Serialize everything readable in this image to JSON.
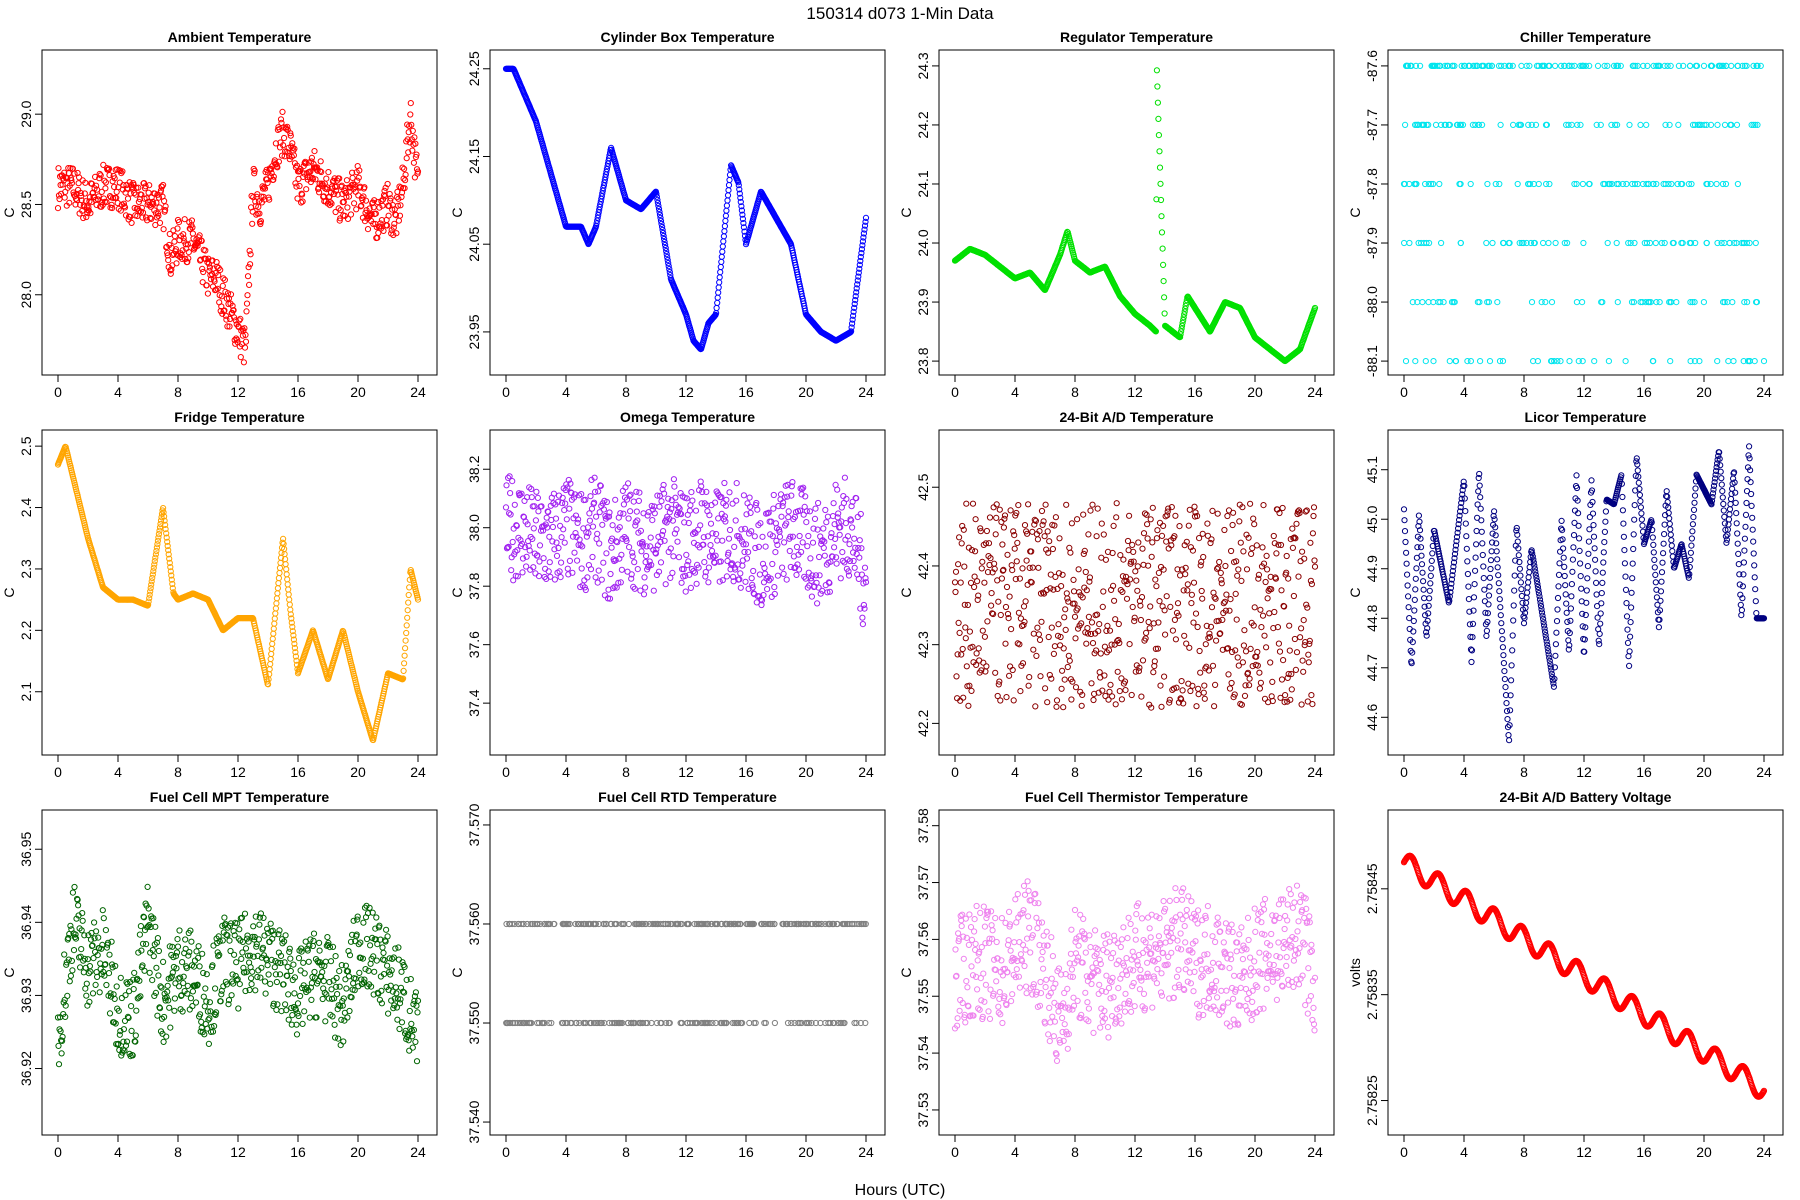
{
  "figure": {
    "title": "150314   d073   1-Min Data",
    "xlabel": "Hours (UTC)"
  },
  "chart_data": [
    {
      "type": "scatter",
      "title": "Ambient Temperature",
      "ylabel": "C",
      "color": "#ff0000",
      "xlim": [
        0,
        24
      ],
      "ylim": [
        27.6,
        29.3
      ],
      "xticks": [
        0,
        4,
        8,
        12,
        16,
        20,
        24
      ],
      "xtick_labels": [
        "0",
        "4",
        "8",
        "12",
        "16",
        "20",
        "24"
      ],
      "yticks": [
        28.0,
        28.5,
        29.0
      ],
      "ytick_labels": [
        "28.0",
        "28.5",
        "29.0"
      ],
      "series": [
        {
          "name": "Ambient",
          "x": [
            0,
            1,
            2,
            3,
            4,
            5,
            6,
            7,
            7.5,
            8,
            9,
            10,
            10.5,
            11,
            11.5,
            12,
            12.5,
            13,
            13.5,
            14,
            14.5,
            15,
            15.5,
            16,
            17,
            18,
            19,
            20,
            21,
            22,
            22.5,
            23,
            23.5,
            24
          ],
          "y": [
            28.6,
            28.6,
            28.5,
            28.6,
            28.6,
            28.5,
            28.5,
            28.5,
            28.2,
            28.3,
            28.3,
            28.1,
            28.1,
            28.0,
            27.9,
            27.8,
            27.7,
            28.6,
            28.5,
            28.6,
            28.8,
            28.9,
            28.8,
            28.6,
            28.7,
            28.6,
            28.5,
            28.6,
            28.4,
            28.5,
            28.4,
            28.6,
            29.0,
            28.6
          ],
          "spread": 0.12
        }
      ]
    },
    {
      "type": "scatter",
      "title": "Cylinder Box Temperature",
      "ylabel": "C",
      "color": "#0000ff",
      "xlim": [
        0,
        24
      ],
      "ylim": [
        23.91,
        24.26
      ],
      "xticks": [
        0,
        4,
        8,
        12,
        16,
        20,
        24
      ],
      "xtick_labels": [
        "0",
        "4",
        "8",
        "12",
        "16",
        "20",
        "24"
      ],
      "yticks": [
        23.95,
        24.05,
        24.15,
        24.25
      ],
      "ytick_labels": [
        "23.95",
        "24.05",
        "24.15",
        "24.25"
      ],
      "series": [
        {
          "name": "Cylinder Box",
          "x": [
            0,
            0.5,
            1,
            2,
            3,
            4,
            5,
            5.5,
            6,
            7,
            8,
            9,
            10,
            11,
            12,
            12.5,
            13,
            13.5,
            14,
            15,
            15.5,
            16,
            17,
            18,
            19,
            20,
            21,
            22,
            23,
            24
          ],
          "y": [
            24.25,
            24.25,
            24.23,
            24.19,
            24.13,
            24.07,
            24.07,
            24.05,
            24.07,
            24.16,
            24.1,
            24.09,
            24.11,
            24.01,
            23.97,
            23.94,
            23.93,
            23.96,
            23.97,
            24.14,
            24.12,
            24.05,
            24.11,
            24.08,
            24.05,
            23.97,
            23.95,
            23.94,
            23.95,
            24.08
          ],
          "spread": 0
        }
      ]
    },
    {
      "type": "scatter",
      "title": "Regulator Temperature",
      "ylabel": "C",
      "color": "#00e000",
      "xlim": [
        0,
        24
      ],
      "ylim": [
        23.79,
        24.31
      ],
      "xticks": [
        0,
        4,
        8,
        12,
        16,
        20,
        24
      ],
      "xtick_labels": [
        "0",
        "4",
        "8",
        "12",
        "16",
        "20",
        "24"
      ],
      "yticks": [
        23.8,
        23.9,
        24.0,
        24.1,
        24.2,
        24.3
      ],
      "ytick_labels": [
        "23.8",
        "23.9",
        "24.0",
        "24.1",
        "24.2",
        "24.3"
      ],
      "series": [
        {
          "name": "Regulator",
          "x": [
            0,
            1,
            2,
            3,
            4,
            5,
            6,
            7,
            7.5,
            8,
            9,
            10,
            11,
            12,
            13,
            13.4,
            13.45,
            14,
            15,
            15.5,
            16,
            17,
            18,
            19,
            20,
            21,
            22,
            23,
            24
          ],
          "y": [
            23.97,
            23.99,
            23.98,
            23.96,
            23.94,
            23.95,
            23.92,
            23.98,
            24.02,
            23.97,
            23.95,
            23.96,
            23.91,
            23.88,
            23.86,
            23.85,
            24.3,
            23.86,
            23.84,
            23.91,
            23.89,
            23.85,
            23.9,
            23.89,
            23.84,
            23.82,
            23.8,
            23.82,
            23.89
          ],
          "spread": 0
        }
      ]
    },
    {
      "type": "scatter",
      "title": "Chiller Temperature",
      "ylabel": "C",
      "color": "#00e5ee",
      "xlim": [
        0,
        24
      ],
      "ylim": [
        -88.11,
        -87.59
      ],
      "xticks": [
        0,
        4,
        8,
        12,
        16,
        20,
        24
      ],
      "xtick_labels": [
        "0",
        "4",
        "8",
        "12",
        "16",
        "20",
        "24"
      ],
      "yticks": [
        -88.1,
        -88.0,
        -87.9,
        -87.8,
        -87.7,
        -87.6
      ],
      "ytick_labels": [
        "-88.1",
        "-88.0",
        "-87.9",
        "-87.8",
        "-87.7",
        "-87.6"
      ],
      "levels": [
        -87.6,
        -87.7,
        -87.8,
        -87.9,
        -88.0,
        -88.1
      ],
      "series": [
        {
          "name": "Chiller",
          "x": [],
          "y": [],
          "spread": 0
        }
      ]
    },
    {
      "type": "scatter",
      "title": "Fridge Temperature",
      "ylabel": "C",
      "color": "#ffa500",
      "xlim": [
        0,
        24
      ],
      "ylim": [
        2.01,
        2.51
      ],
      "xticks": [
        0,
        4,
        8,
        12,
        16,
        20,
        24
      ],
      "xtick_labels": [
        "0",
        "4",
        "8",
        "12",
        "16",
        "20",
        "24"
      ],
      "yticks": [
        2.1,
        2.2,
        2.3,
        2.4,
        2.5
      ],
      "ytick_labels": [
        "2.1",
        "2.2",
        "2.3",
        "2.4",
        "2.5"
      ],
      "series": [
        {
          "name": "Fridge",
          "x": [
            0,
            0.5,
            1,
            2,
            3,
            4,
            5,
            6,
            7,
            7.7,
            8,
            9,
            10,
            11,
            12,
            13,
            14,
            15,
            15.5,
            16,
            17,
            18,
            19,
            20,
            21,
            22,
            23,
            23.5,
            24
          ],
          "y": [
            2.47,
            2.5,
            2.45,
            2.35,
            2.27,
            2.25,
            2.25,
            2.24,
            2.4,
            2.26,
            2.25,
            2.26,
            2.25,
            2.2,
            2.22,
            2.22,
            2.11,
            2.35,
            2.23,
            2.13,
            2.2,
            2.12,
            2.2,
            2.1,
            2.02,
            2.13,
            2.12,
            2.3,
            2.25
          ],
          "spread": 0
        }
      ]
    },
    {
      "type": "scatter",
      "title": "Omega Temperature",
      "ylabel": "C",
      "color": "#a020f0",
      "xlim": [
        0,
        24
      ],
      "ylim": [
        37.25,
        38.3
      ],
      "xticks": [
        0,
        4,
        8,
        12,
        16,
        20,
        24
      ],
      "xtick_labels": [
        "0",
        "4",
        "8",
        "12",
        "16",
        "20",
        "24"
      ],
      "yticks": [
        37.4,
        37.6,
        37.8,
        38.0,
        38.2
      ],
      "ytick_labels": [
        "37.4",
        "37.6",
        "37.8",
        "38.0",
        "38.2"
      ],
      "series": [
        {
          "name": "Omega",
          "x": [
            0,
            1,
            2,
            3,
            4,
            5,
            6,
            7,
            8,
            9,
            10,
            11,
            12,
            13,
            14,
            15,
            16,
            17,
            18,
            19,
            20,
            21,
            22,
            23,
            24
          ],
          "y": [
            38.0,
            38.0,
            37.95,
            37.95,
            38.0,
            37.95,
            38.0,
            37.9,
            38.0,
            37.95,
            37.95,
            38.0,
            37.95,
            38.0,
            37.95,
            38.0,
            37.95,
            37.9,
            37.95,
            38.0,
            37.95,
            37.9,
            38.0,
            38.0,
            37.8
          ],
          "spread": 0.18
        }
      ]
    },
    {
      "type": "scatter",
      "title": "24-Bit A/D Temperature",
      "ylabel": "C",
      "color": "#8b0000",
      "xlim": [
        0,
        24
      ],
      "ylim": [
        42.17,
        42.56
      ],
      "xticks": [
        0,
        4,
        8,
        12,
        16,
        20,
        24
      ],
      "xtick_labels": [
        "0",
        "4",
        "8",
        "12",
        "16",
        "20",
        "24"
      ],
      "yticks": [
        42.2,
        42.3,
        42.4,
        42.5
      ],
      "ytick_labels": [
        "42.2",
        "42.3",
        "42.4",
        "42.5"
      ],
      "series": [
        {
          "name": "24-Bit A/D",
          "x": [
            0,
            24
          ],
          "y": [
            42.35,
            42.35
          ],
          "spread": 0.13
        }
      ]
    },
    {
      "type": "scatter",
      "title": "Licor Temperature",
      "ylabel": "C",
      "color": "#000080",
      "xlim": [
        0,
        24
      ],
      "ylim": [
        44.54,
        45.16
      ],
      "xticks": [
        0,
        4,
        8,
        12,
        16,
        20,
        24
      ],
      "xtick_labels": [
        "0",
        "4",
        "8",
        "12",
        "16",
        "20",
        "24"
      ],
      "yticks": [
        44.6,
        44.7,
        44.8,
        44.9,
        45.0,
        45.1
      ],
      "ytick_labels": [
        "44.6",
        "44.7",
        "44.8",
        "44.9",
        "45.0",
        "45.1"
      ],
      "series": [
        {
          "name": "Licor",
          "x": [
            0,
            0.5,
            1,
            1.5,
            2,
            3,
            4,
            4.5,
            5,
            5.5,
            6,
            7,
            7.5,
            8,
            8.5,
            9,
            10,
            10.5,
            11,
            11.5,
            12,
            12.5,
            13,
            13.5,
            14,
            14.5,
            15,
            15.5,
            16,
            16.5,
            17,
            17.5,
            18,
            18.5,
            19,
            19.5,
            20,
            20.5,
            21,
            21.5,
            22,
            22.5,
            23,
            23.5,
            24
          ],
          "y": [
            45.02,
            44.7,
            45.01,
            44.76,
            44.98,
            44.83,
            45.08,
            44.71,
            45.1,
            44.76,
            45.02,
            44.55,
            44.99,
            44.79,
            44.94,
            44.85,
            44.66,
            45.0,
            44.73,
            45.09,
            44.72,
            45.08,
            44.74,
            45.04,
            45.03,
            45.09,
            44.7,
            45.13,
            44.95,
            45.0,
            44.78,
            45.06,
            44.9,
            44.95,
            44.88,
            45.09,
            45.06,
            45.03,
            45.14,
            44.95,
            45.1,
            44.8,
            45.15,
            44.8,
            44.8
          ],
          "spread": 0
        }
      ]
    },
    {
      "type": "scatter",
      "title": "Fuel Cell MPT Temperature",
      "ylabel": "C",
      "color": "#006400",
      "xlim": [
        0,
        24
      ],
      "ylim": [
        36.912,
        36.954
      ],
      "xticks": [
        0,
        4,
        8,
        12,
        16,
        20,
        24
      ],
      "xtick_labels": [
        "0",
        "4",
        "8",
        "12",
        "16",
        "20",
        "24"
      ],
      "yticks": [
        36.92,
        36.93,
        36.94,
        36.95
      ],
      "ytick_labels": [
        "36.92",
        "36.93",
        "36.94",
        "36.95"
      ],
      "series": [
        {
          "name": "Fuel Cell MPT",
          "x": [
            0,
            1,
            2,
            3,
            4,
            5,
            6,
            7,
            8,
            9,
            10,
            11,
            12,
            13,
            14,
            15,
            16,
            17,
            18,
            19,
            20,
            21,
            22,
            23,
            24
          ],
          "y": [
            36.924,
            36.94,
            36.934,
            36.936,
            36.928,
            36.927,
            36.94,
            36.929,
            36.934,
            36.933,
            36.929,
            36.935,
            36.934,
            36.937,
            36.935,
            36.933,
            36.93,
            36.933,
            36.932,
            36.928,
            36.937,
            36.936,
            36.933,
            36.93,
            36.924
          ],
          "spread": 0.006
        }
      ]
    },
    {
      "type": "scatter",
      "title": "Fuel Cell RTD Temperature",
      "ylabel": "C",
      "color": "#808080",
      "xlim": [
        0,
        24
      ],
      "ylim": [
        37.5395,
        37.5705
      ],
      "xticks": [
        0,
        4,
        8,
        12,
        16,
        20,
        24
      ],
      "xtick_labels": [
        "0",
        "4",
        "8",
        "12",
        "16",
        "20",
        "24"
      ],
      "yticks": [
        37.54,
        37.55,
        37.56,
        37.57
      ],
      "ytick_labels": [
        "37.540",
        "37.550",
        "37.560",
        "37.570"
      ],
      "levels": [
        37.56,
        37.55
      ],
      "series": [
        {
          "name": "Fuel Cell RTD",
          "x": [],
          "y": [],
          "spread": 0
        }
      ]
    },
    {
      "type": "scatter",
      "title": "Fuel Cell Thermistor Temperature",
      "ylabel": "C",
      "color": "#ee82ee",
      "xlim": [
        0,
        24
      ],
      "ylim": [
        37.527,
        37.581
      ],
      "xticks": [
        0,
        4,
        8,
        12,
        16,
        20,
        24
      ],
      "xtick_labels": [
        "0",
        "4",
        "8",
        "12",
        "16",
        "20",
        "24"
      ],
      "yticks": [
        37.53,
        37.54,
        37.55,
        37.56,
        37.57,
        37.58
      ],
      "ytick_labels": [
        "37.53",
        "37.54",
        "37.55",
        "37.56",
        "37.57",
        "37.58"
      ],
      "series": [
        {
          "name": "Fuel Cell Thermistor",
          "x": [
            0,
            1,
            2,
            3,
            4,
            5,
            6,
            7,
            8,
            9,
            10,
            11,
            12,
            13,
            14,
            15,
            16,
            17,
            18,
            19,
            20,
            21,
            22,
            23,
            24
          ],
          "y": [
            37.553,
            37.556,
            37.556,
            37.554,
            37.558,
            37.561,
            37.555,
            37.545,
            37.556,
            37.553,
            37.552,
            37.555,
            37.556,
            37.558,
            37.557,
            37.56,
            37.556,
            37.557,
            37.555,
            37.552,
            37.556,
            37.558,
            37.559,
            37.561,
            37.552
          ],
          "spread": 0.01
        }
      ]
    },
    {
      "type": "scatter",
      "title": "24-Bit A/D Battery Voltage",
      "ylabel": "volts",
      "color": "#ff0000",
      "xlim": [
        0,
        24
      ],
      "ylim": [
        2.758225,
        2.758515
      ],
      "xticks": [
        0,
        4,
        8,
        12,
        16,
        20,
        24
      ],
      "xtick_labels": [
        "0",
        "4",
        "8",
        "12",
        "16",
        "20",
        "24"
      ],
      "yticks": [
        2.75825,
        2.75835,
        2.75845
      ],
      "ytick_labels": [
        "2.75825",
        "2.75835",
        "2.75845"
      ],
      "series": [
        {
          "name": "Battery",
          "x": [
            0,
            24
          ],
          "y": [
            2.758475,
            2.75826
          ],
          "spread": 0
        }
      ]
    }
  ]
}
